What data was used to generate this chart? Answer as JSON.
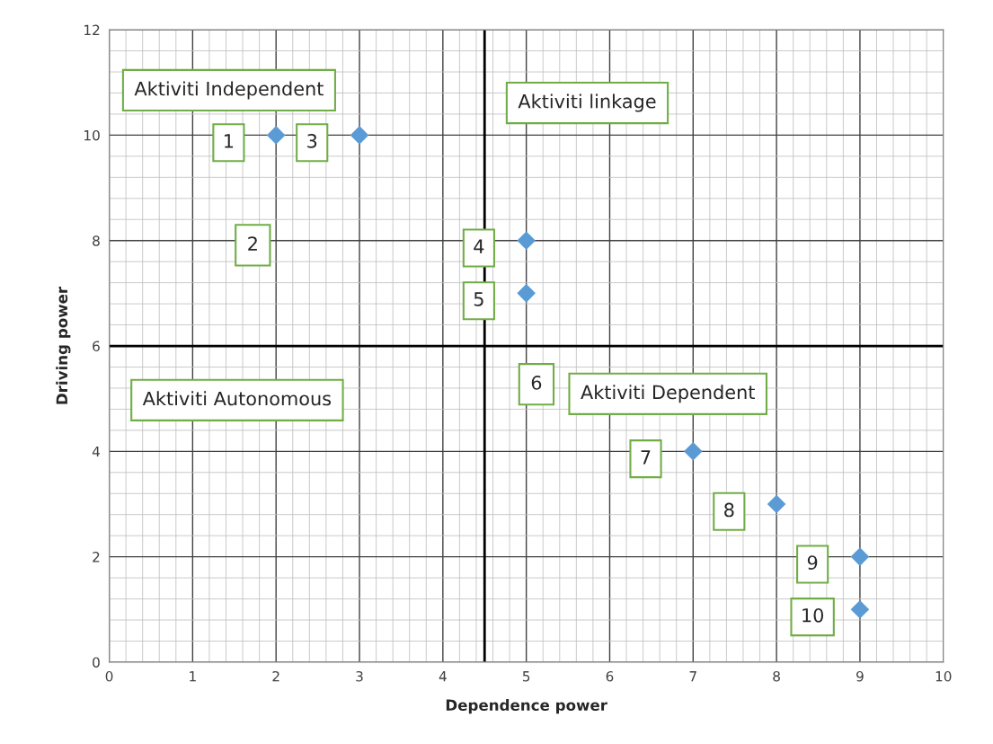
{
  "chart_data": {
    "type": "scatter",
    "xlabel": "Dependence power",
    "ylabel": "Driving power",
    "series": [
      {
        "color": "#5b9bd5",
        "x": [
          2,
          3,
          5,
          5,
          7,
          8,
          9,
          9
        ],
        "values": [
          10,
          10,
          8,
          7,
          4,
          3,
          2,
          1
        ]
      }
    ],
    "marker": "diamond",
    "xlim": [
      0,
      10
    ],
    "ylim": [
      0,
      12
    ],
    "xticks": [
      0,
      1,
      2,
      3,
      4,
      5,
      6,
      7,
      8,
      9,
      10
    ],
    "yticks": [
      0,
      2,
      4,
      6,
      8,
      10,
      12
    ],
    "grid": true,
    "ref_lines": [
      {
        "axis": "x",
        "value": 4.5,
        "color": "#000000"
      },
      {
        "axis": "y",
        "value": 6,
        "color": "#000000"
      }
    ],
    "annotations": [
      "Aktiviti Independent",
      "Aktiviti linkage",
      "Aktiviti Autonomous",
      "Aktiviti Dependent",
      {
        "text": "1",
        "x": 2,
        "y": 10
      },
      "2",
      "6",
      {
        "text": "3",
        "x": 3,
        "y": 10
      },
      {
        "text": "4",
        "x": 5,
        "y": 8
      },
      {
        "text": "5",
        "x": 5,
        "y": 7
      },
      {
        "text": "7",
        "x": 7,
        "y": 4
      },
      {
        "text": "8",
        "x": 8,
        "y": 3
      },
      {
        "text": "9",
        "x": 9,
        "y": 2
      },
      {
        "text": "10",
        "x": 9,
        "y": 1
      }
    ]
  }
}
